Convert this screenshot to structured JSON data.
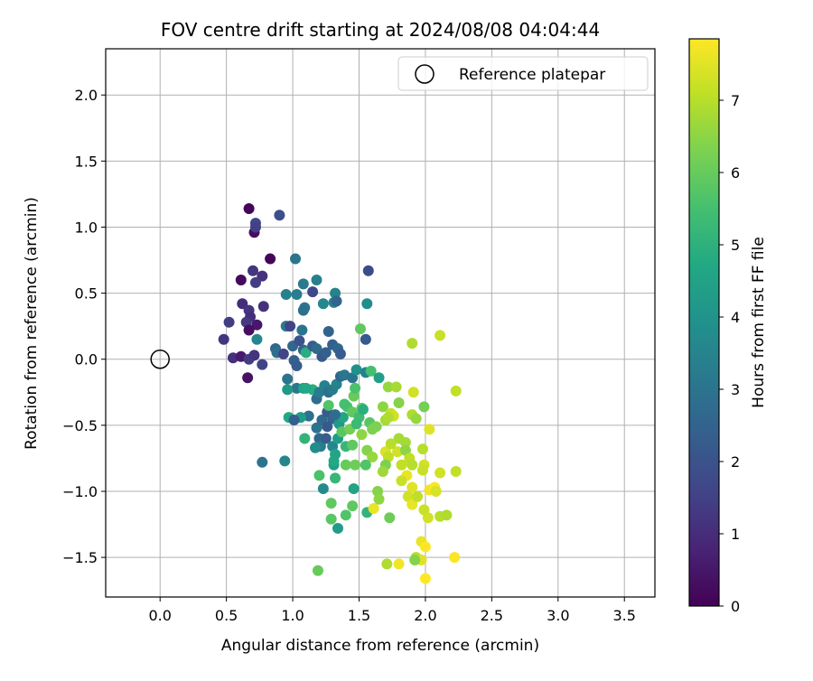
{
  "chart_data": {
    "type": "scatter",
    "title": "FOV centre drift starting at 2024/08/08 04:04:44",
    "xlabel": "Angular distance from reference (arcmin)",
    "ylabel": "Rotation from reference (arcmin)",
    "xlim": [
      -0.41,
      3.73
    ],
    "ylim": [
      -1.8,
      2.35
    ],
    "xticks": [
      "0.0",
      "0.5",
      "1.0",
      "1.5",
      "2.0",
      "2.5",
      "3.0",
      "3.5"
    ],
    "xtick_values": [
      0,
      0.5,
      1,
      1.5,
      2,
      2.5,
      3,
      3.5
    ],
    "yticks": [
      "2.0",
      "1.5",
      "1.0",
      "0.5",
      "0.0",
      "−0.5",
      "−1.0",
      "−1.5"
    ],
    "ytick_values": [
      2,
      1.5,
      1,
      0.5,
      0,
      -0.5,
      -1,
      -1.5
    ],
    "grid": true,
    "legend": {
      "position": "top-right",
      "label": "Reference platepar",
      "marker": "open-circle"
    },
    "reference_point": {
      "x": 0.0,
      "y": 0.0
    },
    "colormap": "viridis",
    "colorbar": {
      "label": "Hours from first FF file",
      "range": [
        0,
        7.85
      ],
      "ticks": [
        "0",
        "1",
        "2",
        "3",
        "4",
        "5",
        "6",
        "7"
      ],
      "tick_values": [
        0,
        1,
        2,
        3,
        4,
        5,
        6,
        7
      ]
    },
    "points": [
      {
        "x": 0.67,
        "y": 1.14,
        "c": 0.1
      },
      {
        "x": 0.71,
        "y": 0.96,
        "c": 0.3
      },
      {
        "x": 0.72,
        "y": 1.03,
        "c": 1.7
      },
      {
        "x": 0.72,
        "y": 1.0,
        "c": 1.5
      },
      {
        "x": 0.9,
        "y": 1.09,
        "c": 1.9
      },
      {
        "x": 0.83,
        "y": 0.76,
        "c": 0.1
      },
      {
        "x": 0.61,
        "y": 0.6,
        "c": 0.2
      },
      {
        "x": 0.7,
        "y": 0.67,
        "c": 1.2
      },
      {
        "x": 0.77,
        "y": 0.63,
        "c": 1.1
      },
      {
        "x": 0.72,
        "y": 0.58,
        "c": 1.4
      },
      {
        "x": 0.62,
        "y": 0.42,
        "c": 1.0
      },
      {
        "x": 0.67,
        "y": 0.37,
        "c": 1.2
      },
      {
        "x": 0.68,
        "y": 0.32,
        "c": 1.0
      },
      {
        "x": 0.65,
        "y": 0.28,
        "c": 1.3
      },
      {
        "x": 0.73,
        "y": 0.26,
        "c": 0.5
      },
      {
        "x": 0.67,
        "y": 0.22,
        "c": 0.3
      },
      {
        "x": 0.52,
        "y": 0.28,
        "c": 1.4
      },
      {
        "x": 0.48,
        "y": 0.15,
        "c": 1.2
      },
      {
        "x": 0.55,
        "y": 0.01,
        "c": 1.1
      },
      {
        "x": 0.61,
        "y": 0.02,
        "c": 0.6
      },
      {
        "x": 0.67,
        "y": 0.0,
        "c": 1.4
      },
      {
        "x": 0.71,
        "y": 0.03,
        "c": 1.2
      },
      {
        "x": 0.77,
        "y": -0.04,
        "c": 1.6
      },
      {
        "x": 0.66,
        "y": -0.14,
        "c": 0.4
      },
      {
        "x": 0.78,
        "y": 0.4,
        "c": 1.1
      },
      {
        "x": 0.73,
        "y": 0.15,
        "c": 3.6
      },
      {
        "x": 0.87,
        "y": 0.08,
        "c": 2.5
      },
      {
        "x": 0.88,
        "y": 0.05,
        "c": 2.9
      },
      {
        "x": 0.93,
        "y": 0.04,
        "c": 1.6
      },
      {
        "x": 1.02,
        "y": 0.76,
        "c": 3.0
      },
      {
        "x": 1.08,
        "y": 0.57,
        "c": 3.2
      },
      {
        "x": 1.18,
        "y": 0.6,
        "c": 3.4
      },
      {
        "x": 1.15,
        "y": 0.51,
        "c": 1.7
      },
      {
        "x": 1.57,
        "y": 0.67,
        "c": 1.8
      },
      {
        "x": 0.95,
        "y": 0.49,
        "c": 3.4
      },
      {
        "x": 1.03,
        "y": 0.49,
        "c": 3.3
      },
      {
        "x": 1.09,
        "y": 0.39,
        "c": 3.0
      },
      {
        "x": 1.08,
        "y": 0.37,
        "c": 2.9
      },
      {
        "x": 1.23,
        "y": 0.42,
        "c": 3.6
      },
      {
        "x": 1.31,
        "y": 0.43,
        "c": 3.4
      },
      {
        "x": 1.32,
        "y": 0.5,
        "c": 3.5
      },
      {
        "x": 1.33,
        "y": 0.44,
        "c": 2.5
      },
      {
        "x": 1.56,
        "y": 0.42,
        "c": 3.8
      },
      {
        "x": 0.95,
        "y": 0.25,
        "c": 3.2
      },
      {
        "x": 0.98,
        "y": 0.25,
        "c": 1.6
      },
      {
        "x": 1.07,
        "y": 0.22,
        "c": 3.0
      },
      {
        "x": 1.27,
        "y": 0.21,
        "c": 2.5
      },
      {
        "x": 1.51,
        "y": 0.23,
        "c": 5.9
      },
      {
        "x": 1.55,
        "y": 0.15,
        "c": 2.2
      },
      {
        "x": 1.0,
        "y": 0.1,
        "c": 2.6
      },
      {
        "x": 1.05,
        "y": 0.14,
        "c": 2.0
      },
      {
        "x": 1.08,
        "y": 0.07,
        "c": 2.5
      },
      {
        "x": 1.1,
        "y": 0.05,
        "c": 4.9
      },
      {
        "x": 1.15,
        "y": 0.1,
        "c": 2.3
      },
      {
        "x": 1.18,
        "y": 0.08,
        "c": 2.7
      },
      {
        "x": 1.22,
        "y": 0.02,
        "c": 2.2
      },
      {
        "x": 1.25,
        "y": 0.05,
        "c": 2.4
      },
      {
        "x": 1.3,
        "y": 0.11,
        "c": 2.4
      },
      {
        "x": 1.34,
        "y": 0.08,
        "c": 2.6
      },
      {
        "x": 1.36,
        "y": 0.04,
        "c": 2.3
      },
      {
        "x": 1.01,
        "y": -0.01,
        "c": 2.4
      },
      {
        "x": 1.03,
        "y": -0.05,
        "c": 2.3
      },
      {
        "x": 0.96,
        "y": -0.15,
        "c": 3.0
      },
      {
        "x": 1.03,
        "y": -0.22,
        "c": 3.1
      },
      {
        "x": 1.08,
        "y": -0.22,
        "c": 4.5
      },
      {
        "x": 0.96,
        "y": -0.23,
        "c": 4.2
      },
      {
        "x": 1.15,
        "y": -0.23,
        "c": 4.9
      },
      {
        "x": 1.18,
        "y": -0.3,
        "c": 2.8
      },
      {
        "x": 1.2,
        "y": -0.25,
        "c": 3.3
      },
      {
        "x": 1.24,
        "y": -0.2,
        "c": 3.4
      },
      {
        "x": 1.27,
        "y": -0.25,
        "c": 2.9
      },
      {
        "x": 1.3,
        "y": -0.23,
        "c": 3.2
      },
      {
        "x": 1.33,
        "y": -0.19,
        "c": 3.5
      },
      {
        "x": 1.36,
        "y": -0.13,
        "c": 2.6
      },
      {
        "x": 1.39,
        "y": -0.12,
        "c": 3.1
      },
      {
        "x": 1.45,
        "y": -0.14,
        "c": 3.0
      },
      {
        "x": 1.48,
        "y": -0.08,
        "c": 3.9
      },
      {
        "x": 1.55,
        "y": -0.1,
        "c": 3.5
      },
      {
        "x": 1.59,
        "y": -0.09,
        "c": 5.5
      },
      {
        "x": 1.65,
        "y": -0.14,
        "c": 4.4
      },
      {
        "x": 1.72,
        "y": -0.21,
        "c": 6.6
      },
      {
        "x": 1.78,
        "y": -0.21,
        "c": 6.8
      },
      {
        "x": 1.9,
        "y": 0.12,
        "c": 6.9
      },
      {
        "x": 2.11,
        "y": 0.18,
        "c": 7.2
      },
      {
        "x": 2.23,
        "y": -0.24,
        "c": 7.1
      },
      {
        "x": 1.91,
        "y": -0.25,
        "c": 7.3
      },
      {
        "x": 1.99,
        "y": -0.36,
        "c": 6.2
      },
      {
        "x": 1.12,
        "y": -0.43,
        "c": 2.9
      },
      {
        "x": 1.06,
        "y": -0.44,
        "c": 4.3
      },
      {
        "x": 0.97,
        "y": -0.44,
        "c": 4.7
      },
      {
        "x": 1.01,
        "y": -0.46,
        "c": 2.4
      },
      {
        "x": 1.18,
        "y": -0.52,
        "c": 3.0
      },
      {
        "x": 1.22,
        "y": -0.46,
        "c": 2.7
      },
      {
        "x": 1.26,
        "y": -0.4,
        "c": 2.3
      },
      {
        "x": 1.3,
        "y": -0.45,
        "c": 2.5
      },
      {
        "x": 1.35,
        "y": -0.49,
        "c": 4.2
      },
      {
        "x": 1.38,
        "y": -0.44,
        "c": 4.6
      },
      {
        "x": 1.41,
        "y": -0.36,
        "c": 5.6
      },
      {
        "x": 1.45,
        "y": -0.4,
        "c": 5.9
      },
      {
        "x": 1.5,
        "y": -0.44,
        "c": 5.4
      },
      {
        "x": 1.52,
        "y": -0.37,
        "c": 6.1
      },
      {
        "x": 1.58,
        "y": -0.48,
        "c": 5.8
      },
      {
        "x": 1.63,
        "y": -0.51,
        "c": 6.3
      },
      {
        "x": 1.68,
        "y": -0.36,
        "c": 6.5
      },
      {
        "x": 1.7,
        "y": -0.46,
        "c": 6.8
      },
      {
        "x": 1.74,
        "y": -0.41,
        "c": 7.2
      },
      {
        "x": 1.76,
        "y": -0.43,
        "c": 7.3
      },
      {
        "x": 1.8,
        "y": -0.33,
        "c": 6.4
      },
      {
        "x": 1.9,
        "y": -0.42,
        "c": 6.9
      },
      {
        "x": 1.93,
        "y": -0.45,
        "c": 6.6
      },
      {
        "x": 2.03,
        "y": -0.53,
        "c": 7.5
      },
      {
        "x": 1.2,
        "y": -0.6,
        "c": 2.6
      },
      {
        "x": 1.21,
        "y": -0.66,
        "c": 3.3
      },
      {
        "x": 1.09,
        "y": -0.6,
        "c": 5.1
      },
      {
        "x": 1.25,
        "y": -0.6,
        "c": 2.3
      },
      {
        "x": 1.3,
        "y": -0.66,
        "c": 3.6
      },
      {
        "x": 1.34,
        "y": -0.6,
        "c": 4.3
      },
      {
        "x": 1.4,
        "y": -0.66,
        "c": 5.2
      },
      {
        "x": 1.45,
        "y": -0.65,
        "c": 5.9
      },
      {
        "x": 1.56,
        "y": -0.69,
        "c": 6.4
      },
      {
        "x": 1.6,
        "y": -0.74,
        "c": 6.6
      },
      {
        "x": 1.7,
        "y": -0.7,
        "c": 7.4
      },
      {
        "x": 1.72,
        "y": -0.74,
        "c": 7.1
      },
      {
        "x": 1.79,
        "y": -0.7,
        "c": 7.3
      },
      {
        "x": 1.85,
        "y": -0.63,
        "c": 6.8
      },
      {
        "x": 1.85,
        "y": -0.69,
        "c": 6.5
      },
      {
        "x": 1.88,
        "y": -0.75,
        "c": 7.1
      },
      {
        "x": 1.98,
        "y": -0.68,
        "c": 7.0
      },
      {
        "x": 0.77,
        "y": -0.78,
        "c": 3.0
      },
      {
        "x": 0.94,
        "y": -0.77,
        "c": 3.6
      },
      {
        "x": 1.31,
        "y": -0.8,
        "c": 4.4
      },
      {
        "x": 1.31,
        "y": -0.77,
        "c": 4.7
      },
      {
        "x": 1.4,
        "y": -0.8,
        "c": 6.0
      },
      {
        "x": 1.47,
        "y": -0.8,
        "c": 6.1
      },
      {
        "x": 1.7,
        "y": -0.8,
        "c": 6.3
      },
      {
        "x": 1.68,
        "y": -0.85,
        "c": 6.7
      },
      {
        "x": 1.82,
        "y": -0.8,
        "c": 7.1
      },
      {
        "x": 1.9,
        "y": -0.8,
        "c": 7.0
      },
      {
        "x": 1.99,
        "y": -0.8,
        "c": 7.3
      },
      {
        "x": 1.98,
        "y": -0.84,
        "c": 7.2
      },
      {
        "x": 2.11,
        "y": -0.86,
        "c": 7.3
      },
      {
        "x": 2.23,
        "y": -0.85,
        "c": 7.1
      },
      {
        "x": 1.2,
        "y": -0.88,
        "c": 5.6
      },
      {
        "x": 1.32,
        "y": -0.9,
        "c": 5.2
      },
      {
        "x": 1.86,
        "y": -0.88,
        "c": 7.6
      },
      {
        "x": 1.82,
        "y": -0.92,
        "c": 7.2
      },
      {
        "x": 1.23,
        "y": -0.98,
        "c": 3.7
      },
      {
        "x": 1.46,
        "y": -0.98,
        "c": 4.5
      },
      {
        "x": 1.64,
        "y": -1.0,
        "c": 6.4
      },
      {
        "x": 1.9,
        "y": -0.97,
        "c": 7.5
      },
      {
        "x": 2.03,
        "y": -0.99,
        "c": 7.7
      },
      {
        "x": 2.07,
        "y": -0.97,
        "c": 7.8
      },
      {
        "x": 2.08,
        "y": -1.0,
        "c": 7.4
      },
      {
        "x": 1.29,
        "y": -1.09,
        "c": 5.9
      },
      {
        "x": 1.45,
        "y": -1.11,
        "c": 5.9
      },
      {
        "x": 1.65,
        "y": -1.06,
        "c": 6.5
      },
      {
        "x": 1.87,
        "y": -1.04,
        "c": 7.3
      },
      {
        "x": 1.9,
        "y": -1.1,
        "c": 7.6
      },
      {
        "x": 1.94,
        "y": -1.04,
        "c": 7.1
      },
      {
        "x": 1.4,
        "y": -1.18,
        "c": 5.7
      },
      {
        "x": 1.56,
        "y": -1.16,
        "c": 5.1
      },
      {
        "x": 1.61,
        "y": -1.13,
        "c": 7.6
      },
      {
        "x": 1.73,
        "y": -1.2,
        "c": 6.1
      },
      {
        "x": 1.99,
        "y": -1.14,
        "c": 7.2
      },
      {
        "x": 2.02,
        "y": -1.2,
        "c": 7.3
      },
      {
        "x": 2.11,
        "y": -1.19,
        "c": 7.0
      },
      {
        "x": 2.16,
        "y": -1.18,
        "c": 6.9
      },
      {
        "x": 1.29,
        "y": -1.21,
        "c": 5.8
      },
      {
        "x": 1.34,
        "y": -1.28,
        "c": 4.3
      },
      {
        "x": 1.97,
        "y": -1.38,
        "c": 7.6
      },
      {
        "x": 2.0,
        "y": -1.42,
        "c": 7.9
      },
      {
        "x": 1.93,
        "y": -1.5,
        "c": 7.0
      },
      {
        "x": 1.97,
        "y": -1.52,
        "c": 7.5
      },
      {
        "x": 1.71,
        "y": -1.55,
        "c": 6.9
      },
      {
        "x": 1.8,
        "y": -1.55,
        "c": 7.7
      },
      {
        "x": 1.92,
        "y": -1.52,
        "c": 6.4
      },
      {
        "x": 2.22,
        "y": -1.5,
        "c": 7.8
      },
      {
        "x": 1.19,
        "y": -1.6,
        "c": 6.0
      },
      {
        "x": 2.0,
        "y": -1.66,
        "c": 7.9
      },
      {
        "x": 1.1,
        "y": -0.22,
        "c": 4.7
      },
      {
        "x": 1.27,
        "y": -0.35,
        "c": 5.7
      },
      {
        "x": 1.39,
        "y": -0.34,
        "c": 5.5
      },
      {
        "x": 1.46,
        "y": -0.28,
        "c": 6.0
      },
      {
        "x": 1.37,
        "y": -0.55,
        "c": 5.8
      },
      {
        "x": 1.43,
        "y": -0.53,
        "c": 6.2
      },
      {
        "x": 1.52,
        "y": -0.57,
        "c": 6.5
      },
      {
        "x": 1.6,
        "y": -0.53,
        "c": 6.3
      },
      {
        "x": 1.8,
        "y": -0.6,
        "c": 6.8
      },
      {
        "x": 1.74,
        "y": -0.64,
        "c": 7.0
      },
      {
        "x": 1.53,
        "y": -0.38,
        "c": 4.9
      },
      {
        "x": 1.47,
        "y": -0.22,
        "c": 5.6
      },
      {
        "x": 1.48,
        "y": -0.49,
        "c": 5.3
      },
      {
        "x": 1.32,
        "y": -0.72,
        "c": 4.6
      },
      {
        "x": 1.26,
        "y": -0.51,
        "c": 2.2
      },
      {
        "x": 1.32,
        "y": -0.42,
        "c": 2.8
      },
      {
        "x": 1.17,
        "y": -0.67,
        "c": 3.8
      },
      {
        "x": 1.55,
        "y": -0.8,
        "c": 5.7
      },
      {
        "x": 1.72,
        "y": -0.44,
        "c": 6.9
      }
    ]
  }
}
